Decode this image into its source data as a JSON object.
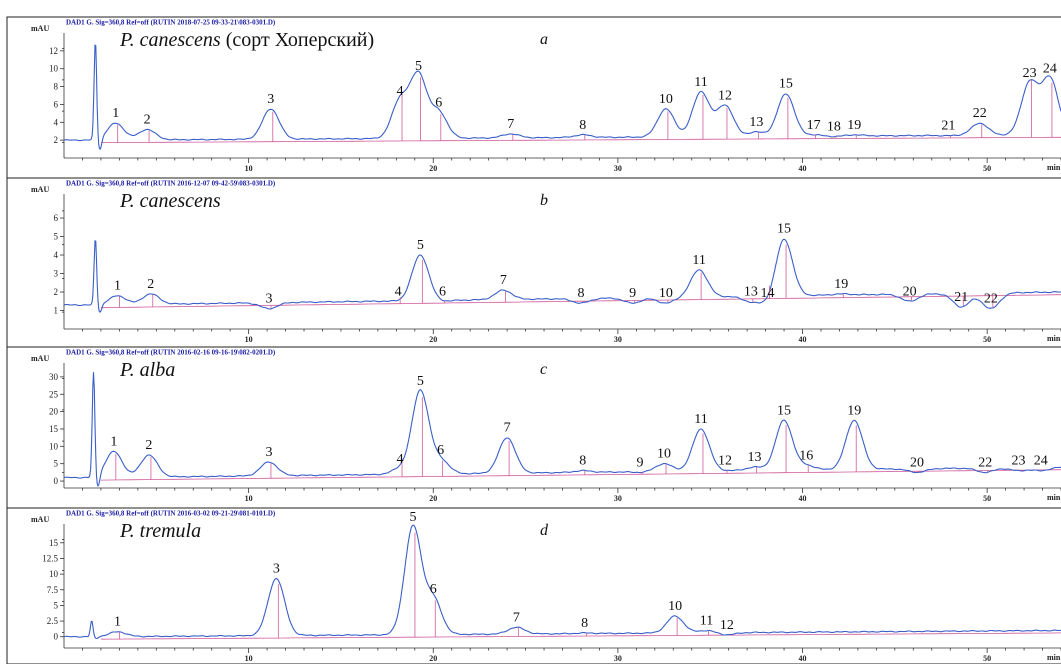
{
  "colors": {
    "trace": "#3a5fc8",
    "baseline": "#d05a9a",
    "header": "#1a1aa6"
  },
  "x_unit": "min",
  "y_unit": "mAU",
  "chart_data": [
    {
      "type": "line",
      "header": "DAD1 G. Sig=360,8 Ref=off (RUTIN 2018-07-25 09-33-21\\083-0301.D)",
      "species_italic": "P. canescens",
      "species_rest": " (сорт Хоперский)",
      "panel_letter": "a",
      "ylim": [
        0,
        14
      ],
      "yticks": [
        "2",
        "4",
        "6",
        "8",
        "10",
        "12"
      ],
      "xlim": [
        0,
        54
      ],
      "xticks": [
        "10",
        "20",
        "30",
        "40",
        "50"
      ],
      "xlabel": "min",
      "ylabel": "mAU",
      "start_level": 2.0,
      "end_level": 2.6,
      "inject": {
        "time": 1.7,
        "height": 13
      },
      "peaks": [
        {
          "label": "1",
          "time": 2.8,
          "height": 3.9
        },
        {
          "label": "2",
          "time": 4.5,
          "height": 3.2
        },
        {
          "label": "3",
          "time": 11.2,
          "height": 5.5
        },
        {
          "label": "4",
          "time": 18.2,
          "height": 6.4
        },
        {
          "label": "5",
          "time": 19.2,
          "height": 9.2
        },
        {
          "label": "6",
          "time": 20.3,
          "height": 5.1
        },
        {
          "label": "7",
          "time": 24.2,
          "height": 2.7
        },
        {
          "label": "8",
          "time": 28.1,
          "height": 2.6
        },
        {
          "label": "10",
          "time": 32.6,
          "height": 5.5
        },
        {
          "label": "11",
          "time": 34.5,
          "height": 7.4
        },
        {
          "label": "12",
          "time": 35.8,
          "height": 5.9
        },
        {
          "label": "13",
          "time": 37.5,
          "height": 2.9
        },
        {
          "label": "15",
          "time": 39.1,
          "height": 7.2
        },
        {
          "label": "17",
          "time": 40.6,
          "height": 2.6
        },
        {
          "label": "18",
          "time": 41.7,
          "height": 2.4
        },
        {
          "label": "19",
          "time": 42.8,
          "height": 2.6
        },
        {
          "label": "21",
          "time": 47.9,
          "height": 2.5
        },
        {
          "label": "22",
          "time": 49.6,
          "height": 3.9
        },
        {
          "label": "23",
          "time": 52.3,
          "height": 8.4
        },
        {
          "label": "24",
          "time": 53.4,
          "height": 8.9
        }
      ]
    },
    {
      "type": "line",
      "header": "DAD1 G. Sig=360,8 Ref=off (RUTIN 2016-12-07 09-42-59\\083-0301.D)",
      "species_italic": "P. canescens",
      "species_rest": "",
      "panel_letter": "b",
      "ylim": [
        0,
        7.3
      ],
      "yticks": [
        "1",
        "2",
        "3",
        "4",
        "5",
        "6"
      ],
      "xlim": [
        0,
        54
      ],
      "xticks": [
        "10",
        "20",
        "30",
        "40",
        "50"
      ],
      "xlabel": "min",
      "ylabel": "mAU",
      "start_level": 1.3,
      "end_level": 2.0,
      "inject": {
        "time": 1.7,
        "height": 4.9
      },
      "peaks": [
        {
          "label": "1",
          "time": 2.9,
          "height": 1.8
        },
        {
          "label": "2",
          "time": 4.7,
          "height": 1.9
        },
        {
          "label": "3",
          "time": 11.1,
          "height": 1.1
        },
        {
          "label": "4",
          "time": 18.1,
          "height": 1.5
        },
        {
          "label": "5",
          "time": 19.3,
          "height": 4.0
        },
        {
          "label": "6",
          "time": 20.5,
          "height": 1.5
        },
        {
          "label": "7",
          "time": 23.8,
          "height": 2.1
        },
        {
          "label": "8",
          "time": 28.0,
          "height": 1.4
        },
        {
          "label": "9",
          "time": 30.8,
          "height": 1.4
        },
        {
          "label": "10",
          "time": 32.6,
          "height": 1.4
        },
        {
          "label": "11",
          "time": 34.4,
          "height": 3.2
        },
        {
          "label": "13",
          "time": 37.2,
          "height": 1.5
        },
        {
          "label": "14",
          "time": 38.1,
          "height": 1.4
        },
        {
          "label": "15",
          "time": 39.0,
          "height": 4.9
        },
        {
          "label": "19",
          "time": 42.1,
          "height": 1.9
        },
        {
          "label": "20",
          "time": 45.8,
          "height": 1.5
        },
        {
          "label": "21",
          "time": 48.6,
          "height": 1.2
        },
        {
          "label": "22",
          "time": 50.2,
          "height": 1.1
        }
      ]
    },
    {
      "type": "line",
      "header": "DAD1 G. Sig=360,8 Ref=off (RUTIN 2016-02-16 09-16-19\\082-0201.D)",
      "species_italic": "P. alba",
      "species_rest": "",
      "panel_letter": "c",
      "ylim": [
        -2,
        34
      ],
      "yticks": [
        "0",
        "5",
        "10",
        "15",
        "20",
        "25",
        "30"
      ],
      "xlim": [
        0,
        54
      ],
      "xticks": [
        "10",
        "20",
        "30",
        "40",
        "50"
      ],
      "xlabel": "min",
      "ylabel": "mAU",
      "start_level": 1.0,
      "end_level": 4.0,
      "inject": {
        "time": 1.6,
        "height": 31
      },
      "peaks": [
        {
          "label": "1",
          "time": 2.7,
          "height": 8.5
        },
        {
          "label": "2",
          "time": 4.6,
          "height": 7.5
        },
        {
          "label": "3",
          "time": 11.1,
          "height": 5.5
        },
        {
          "label": "4",
          "time": 18.2,
          "height": 3.5
        },
        {
          "label": "5",
          "time": 19.3,
          "height": 26
        },
        {
          "label": "6",
          "time": 20.4,
          "height": 6.0
        },
        {
          "label": "7",
          "time": 24.0,
          "height": 12.5
        },
        {
          "label": "8",
          "time": 28.1,
          "height": 3.0
        },
        {
          "label": "9",
          "time": 31.2,
          "height": 2.5
        },
        {
          "label": "10",
          "time": 32.5,
          "height": 5.0
        },
        {
          "label": "11",
          "time": 34.5,
          "height": 15
        },
        {
          "label": "12",
          "time": 35.8,
          "height": 3.0
        },
        {
          "label": "13",
          "time": 37.4,
          "height": 4.0
        },
        {
          "label": "15",
          "time": 39.0,
          "height": 17.5
        },
        {
          "label": "16",
          "time": 40.2,
          "height": 4.5
        },
        {
          "label": "19",
          "time": 42.8,
          "height": 17.5
        },
        {
          "label": "20",
          "time": 46.2,
          "height": 2.5
        },
        {
          "label": "22",
          "time": 49.9,
          "height": 2.5
        },
        {
          "label": "23",
          "time": 51.7,
          "height": 3.0
        },
        {
          "label": "24",
          "time": 52.9,
          "height": 3.0
        }
      ]
    },
    {
      "type": "line",
      "header": "DAD1 G. Sig=360,8 Ref=off (RUTIN 2016-03-02 09-21-29\\081-0101.D)",
      "species_italic": "P. tremula",
      "species_rest": "",
      "panel_letter": "d",
      "ylim": [
        -1.8,
        18
      ],
      "yticks": [
        "0",
        "2.5",
        "5",
        "7.5",
        "10",
        "12.5",
        "15"
      ],
      "xlim": [
        0,
        54
      ],
      "xticks": [
        "10",
        "20",
        "30",
        "40",
        "50"
      ],
      "xlabel": "min",
      "ylabel": "mAU",
      "start_level": 0.0,
      "end_level": 1.0,
      "inject": {
        "time": 1.5,
        "height": 2.5
      },
      "peaks": [
        {
          "label": "1",
          "time": 2.9,
          "height": 0.8
        },
        {
          "label": "3",
          "time": 11.5,
          "height": 9.3
        },
        {
          "label": "5",
          "time": 18.9,
          "height": 17.5
        },
        {
          "label": "6",
          "time": 20.0,
          "height": 6.0
        },
        {
          "label": "7",
          "time": 24.5,
          "height": 1.5
        },
        {
          "label": "8",
          "time": 28.2,
          "height": 0.6
        },
        {
          "label": "10",
          "time": 33.1,
          "height": 3.3
        },
        {
          "label": "11",
          "time": 34.8,
          "height": 1.0
        },
        {
          "label": "12",
          "time": 35.9,
          "height": 0.3
        }
      ]
    }
  ]
}
